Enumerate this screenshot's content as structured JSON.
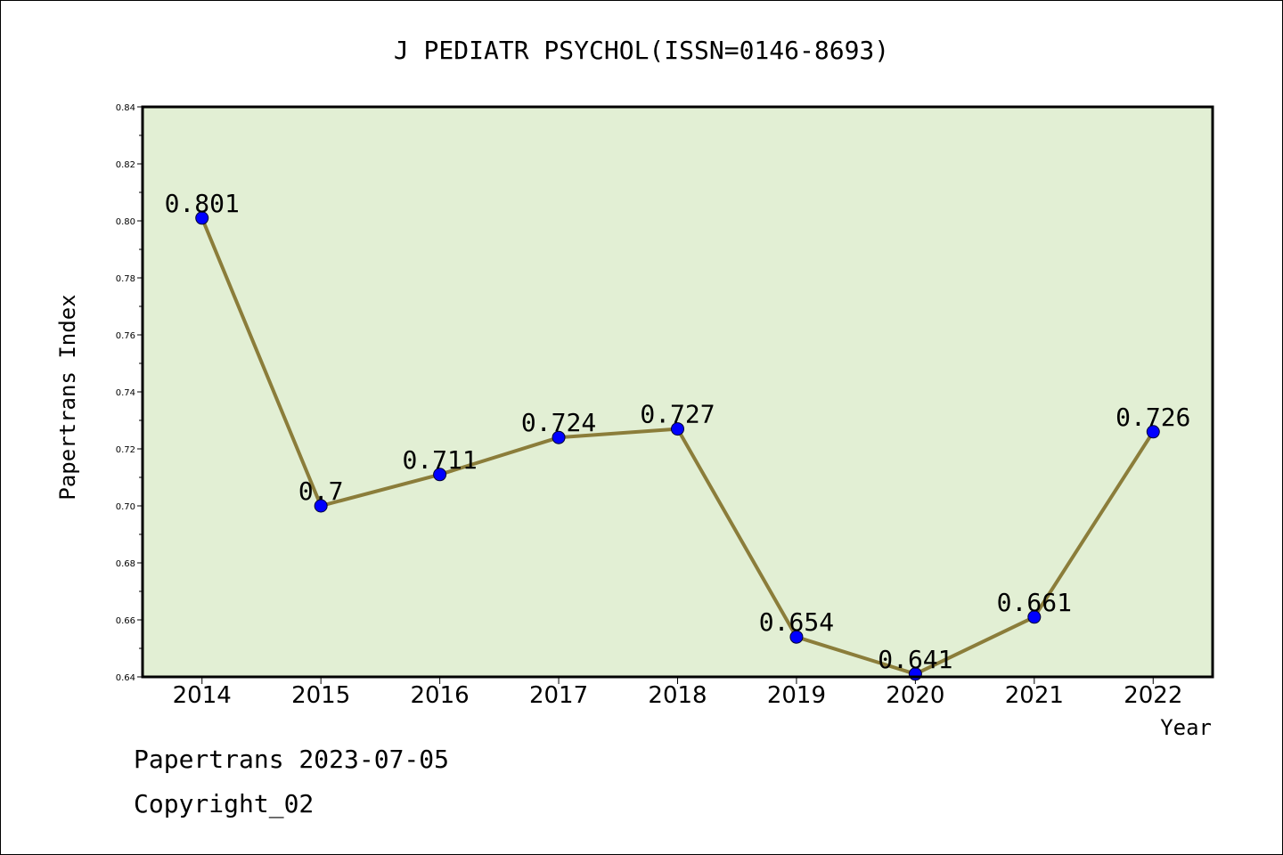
{
  "chart_data": {
    "type": "line",
    "title": "J PEDIATR PSYCHOL(ISSN=0146-8693)",
    "xlabel": "Year",
    "ylabel": "Papertrans Index",
    "categories": [
      "2014",
      "2015",
      "2016",
      "2017",
      "2018",
      "2019",
      "2020",
      "2021",
      "2022"
    ],
    "series": [
      {
        "values": [
          0.801,
          0.7,
          0.711,
          0.724,
          0.727,
          0.654,
          0.641,
          0.661,
          0.726
        ]
      }
    ],
    "data_labels": [
      "0.801",
      "0.7",
      "0.711",
      "0.724",
      "0.727",
      "0.654",
      "0.641",
      "0.661",
      "0.726"
    ],
    "ylim": [
      0.64,
      0.84
    ],
    "yticks": [
      "0.64",
      "0.66",
      "0.68",
      "0.70",
      "0.72",
      "0.74",
      "0.76",
      "0.78",
      "0.80",
      "0.82",
      "0.84"
    ],
    "grid": false,
    "colors": {
      "plot_bg": "#e2efd4",
      "line": "#8b7d3a",
      "marker": "#0000ff"
    }
  },
  "footer": {
    "line1": "Papertrans 2023-07-05",
    "line2": "Copyright_02"
  }
}
